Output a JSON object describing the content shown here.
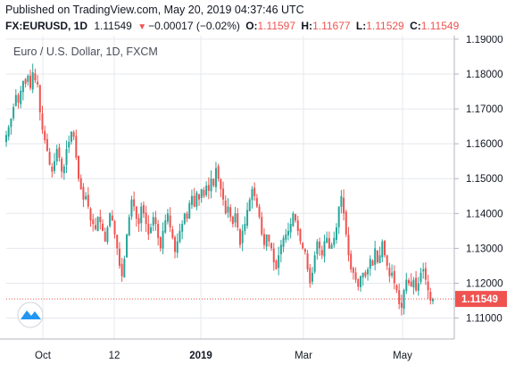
{
  "header": {
    "published": "Published on TradingView.com, May 20, 2019 04:37:46 UTC",
    "symbol": "FX:EURUSD, 1D",
    "last": "1.11549",
    "arrow": "▼",
    "change": "−0.00017 (−0.02%)",
    "open_label": "O:",
    "open": "1.11597",
    "high_label": "H:",
    "high": "1.11677",
    "low_label": "L:",
    "low": "1.11529",
    "close_label": "C:",
    "close": "1.11549"
  },
  "colors": {
    "up": "#26a69a",
    "down": "#ef5350",
    "grid": "#e6e8ee",
    "border": "#b2b5be",
    "price_line": "#ef5350",
    "logo": "#2196f3"
  },
  "chart_data": {
    "type": "candlestick",
    "title": "Euro / U.S. Dollar, 1D, FXCM",
    "xlabel": "",
    "ylabel": "",
    "ylim": [
      1.104,
      1.191
    ],
    "y_ticks": [
      "1.11000",
      "1.12000",
      "1.13000",
      "1.14000",
      "1.15000",
      "1.16000",
      "1.17000",
      "1.18000",
      "1.19000"
    ],
    "x_ticks": [
      "Oct",
      "12",
      "2019",
      "Mar",
      "May"
    ],
    "last_price": "1.11549",
    "logo_icon": "tradingview-logo-icon",
    "grid": true,
    "closes": [
      1.1625,
      1.1648,
      1.1672,
      1.1705,
      1.174,
      1.1718,
      1.1752,
      1.178,
      1.1772,
      1.1795,
      1.176,
      1.1805,
      1.1782,
      1.177,
      1.169,
      1.164,
      1.161,
      1.158,
      1.154,
      1.152,
      1.155,
      1.1585,
      1.156,
      1.152,
      1.1535,
      1.1585,
      1.1605,
      1.1635,
      1.162,
      1.156,
      1.15,
      1.147,
      1.144,
      1.145,
      1.142,
      1.138,
      1.137,
      1.1355,
      1.139,
      1.1375,
      1.135,
      1.132,
      1.136,
      1.14,
      1.138,
      1.134,
      1.13,
      1.125,
      1.122,
      1.127,
      1.134,
      1.139,
      1.144,
      1.142,
      1.1385,
      1.137,
      1.142,
      1.14,
      1.137,
      1.134,
      1.136,
      1.139,
      1.137,
      1.133,
      1.13,
      1.135,
      1.138,
      1.14,
      1.136,
      1.133,
      1.129,
      1.132,
      1.135,
      1.137,
      1.14,
      1.1385,
      1.143,
      1.145,
      1.142,
      1.146,
      1.144,
      1.147,
      1.145,
      1.148,
      1.1465,
      1.15,
      1.148,
      1.153,
      1.15,
      1.147,
      1.144,
      1.14,
      1.142,
      1.139,
      1.137,
      1.14,
      1.136,
      1.131,
      1.135,
      1.137,
      1.141,
      1.144,
      1.147,
      1.145,
      1.142,
      1.139,
      1.134,
      1.131,
      1.134,
      1.132,
      1.13,
      1.126,
      1.124,
      1.128,
      1.131,
      1.133,
      1.134,
      1.135,
      1.137,
      1.14,
      1.138,
      1.135,
      1.132,
      1.13,
      1.129,
      1.124,
      1.12,
      1.123,
      1.128,
      1.132,
      1.13,
      1.128,
      1.132,
      1.133,
      1.13,
      1.131,
      1.133,
      1.136,
      1.142,
      1.145,
      1.14,
      1.134,
      1.128,
      1.124,
      1.123,
      1.121,
      1.119,
      1.122,
      1.123,
      1.122,
      1.124,
      1.127,
      1.125,
      1.13,
      1.126,
      1.128,
      1.132,
      1.128,
      1.125,
      1.122,
      1.123,
      1.12,
      1.118,
      1.114,
      1.113,
      1.118,
      1.121,
      1.12,
      1.119,
      1.121,
      1.118,
      1.12,
      1.123,
      1.124,
      1.121,
      1.118,
      1.115,
      1.1155
    ]
  }
}
